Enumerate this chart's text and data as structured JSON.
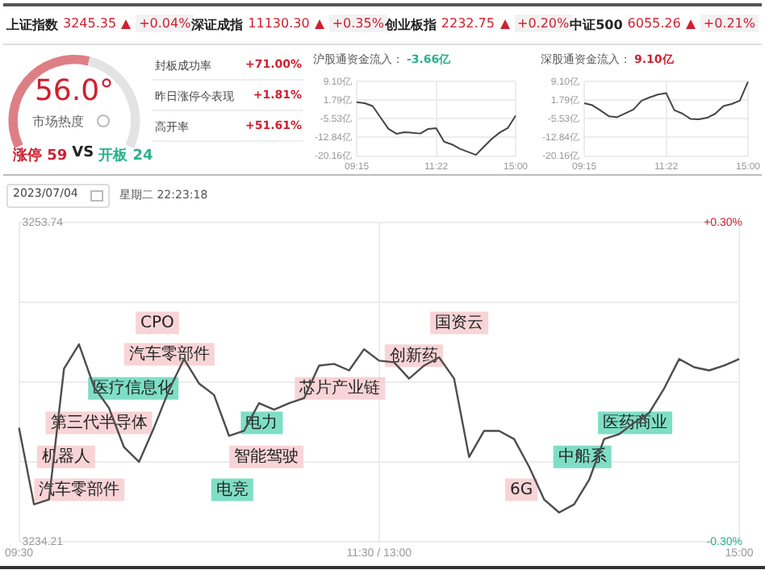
{
  "chart_data": [
    {
      "type": "other",
      "annotations": [
        "上证指数",
        "3245.35",
        "+0.04%",
        "深证成指",
        "11130.30",
        "+0.35%",
        "创业板指",
        "2232.75",
        "+0.20%",
        "中证500",
        "6055.26",
        "+0.21%",
        "封板成功率",
        "+71.00%",
        "昨日涨停今表现",
        "+1.81%",
        "高开率",
        "+51.61%"
      ]
    },
    {
      "type": "donut",
      "title": "市场热度",
      "categories": [
        null,
        null
      ],
      "values": [
        56,
        44
      ],
      "colors": [
        "#de7f86",
        "#e3e3e3"
      ],
      "annotations": [
        "56.0°",
        "涨停 59",
        "VS",
        "开板 24"
      ]
    },
    {
      "type": "line",
      "title": "沪股通资金流入：",
      "annotations": [
        "-3.66亿"
      ],
      "grid": true,
      "categories": [
        "09:15",
        null,
        null,
        null,
        null,
        null,
        null,
        null,
        null,
        null,
        "11:22",
        null,
        null,
        null,
        null,
        null,
        null,
        null,
        null,
        null,
        "15:00"
      ],
      "ylim": [
        -20.16,
        9.1
      ],
      "yticks": [
        {
          "value": 9.1,
          "label": "9.10亿"
        },
        {
          "value": 1.79,
          "label": "1.79亿"
        },
        {
          "value": -5.53,
          "label": "-5.53亿"
        },
        {
          "value": -12.84,
          "label": "-12.84亿"
        },
        {
          "value": -20.16,
          "label": "-20.16亿"
        }
      ],
      "series": [
        {
          "color": "#444444",
          "values": [
            1.0,
            0.6,
            -0.5,
            -5.0,
            -9.5,
            -11.4,
            -10.8,
            -11.0,
            -11.3,
            -9.5,
            -9.2,
            -14.5,
            -15.6,
            -17.3,
            -18.5,
            -19.7,
            -16.5,
            -13.4,
            -10.9,
            -9.2,
            -4.3
          ]
        }
      ]
    },
    {
      "type": "line",
      "title": "深股通资金流入：",
      "annotations": [
        "9.10亿"
      ],
      "grid": true,
      "categories": [
        "09:15",
        null,
        null,
        null,
        null,
        null,
        null,
        null,
        null,
        null,
        "11:22",
        null,
        null,
        null,
        null,
        null,
        null,
        null,
        null,
        null,
        "15:00"
      ],
      "ylim": [
        -20.16,
        9.1
      ],
      "yticks": [
        {
          "value": 9.1,
          "label": "9.10亿"
        },
        {
          "value": 1.79,
          "label": "1.79亿"
        },
        {
          "value": -5.53,
          "label": "-5.53亿"
        },
        {
          "value": -12.84,
          "label": "-12.84亿"
        },
        {
          "value": -20.16,
          "label": "-20.16亿"
        }
      ],
      "series": [
        {
          "color": "#444444",
          "values": [
            0.6,
            -0.2,
            -2.3,
            -4.5,
            -4.9,
            -3.4,
            -1.9,
            1.6,
            2.9,
            4.0,
            4.6,
            -2.1,
            -3.5,
            -5.6,
            -5.7,
            -5.1,
            -3.5,
            -0.5,
            0.3,
            1.6,
            9.1
          ]
        }
      ]
    },
    {
      "type": "line",
      "grid": true,
      "categories": [
        "09:30",
        null,
        null,
        null,
        null,
        null,
        null,
        null,
        null,
        null,
        null,
        null,
        null,
        null,
        null,
        null,
        null,
        null,
        null,
        null,
        null,
        null,
        null,
        null,
        "11:30 / 13:00",
        null,
        null,
        null,
        null,
        null,
        null,
        null,
        null,
        null,
        null,
        null,
        null,
        null,
        null,
        null,
        null,
        null,
        null,
        null,
        null,
        null,
        null,
        null,
        "15:00"
      ],
      "ylim": [
        3234.21,
        3253.74
      ],
      "yticks": [
        3253.74,
        {
          "value": 3248.86,
          "label": null
        },
        {
          "value": 3243.98,
          "label": null
        },
        {
          "value": 3239.09,
          "label": null
        },
        3234.21
      ],
      "y2lim": [
        -0.3,
        0.3
      ],
      "y2ticks": [
        {
          "value": 0.3,
          "label": "+0.30%"
        },
        {
          "value": -0.3,
          "label": "-0.30%"
        }
      ],
      "series": [
        {
          "color": "#4d4d4d",
          "values": [
            3241.2,
            3236.5,
            3236.8,
            3244.8,
            3246.3,
            3243.7,
            3242.4,
            3240.0,
            3239.1,
            3241.2,
            3243.5,
            3245.4,
            3243.9,
            3243.2,
            3240.7,
            3241.0,
            3242.7,
            3242.3,
            3242.7,
            3243.0,
            3245.0,
            3245.1,
            3244.7,
            3246.0,
            3245.3,
            3245.2,
            3244.2,
            3245.0,
            3245.5,
            3244.2,
            3239.4,
            3241.0,
            3241.0,
            3240.5,
            3238.8,
            3236.8,
            3236.0,
            3236.5,
            3238.0,
            3240.5,
            3240.8,
            3241.5,
            3242.1,
            3243.6,
            3245.4,
            3244.9,
            3244.7,
            3245.0,
            3245.4
          ]
        }
      ],
      "annotations": [
        "2023/07/04",
        "星期二 22:23:18",
        "汽车零部件",
        "机器人",
        "第三代半导体",
        "医疗信息化",
        "汽车零部件",
        "CPO",
        "电竞",
        "智能驾驶",
        "电力",
        "芯片产业链",
        "创新药",
        "国资云",
        "6G",
        "中船系",
        "医药商业"
      ]
    }
  ]
}
